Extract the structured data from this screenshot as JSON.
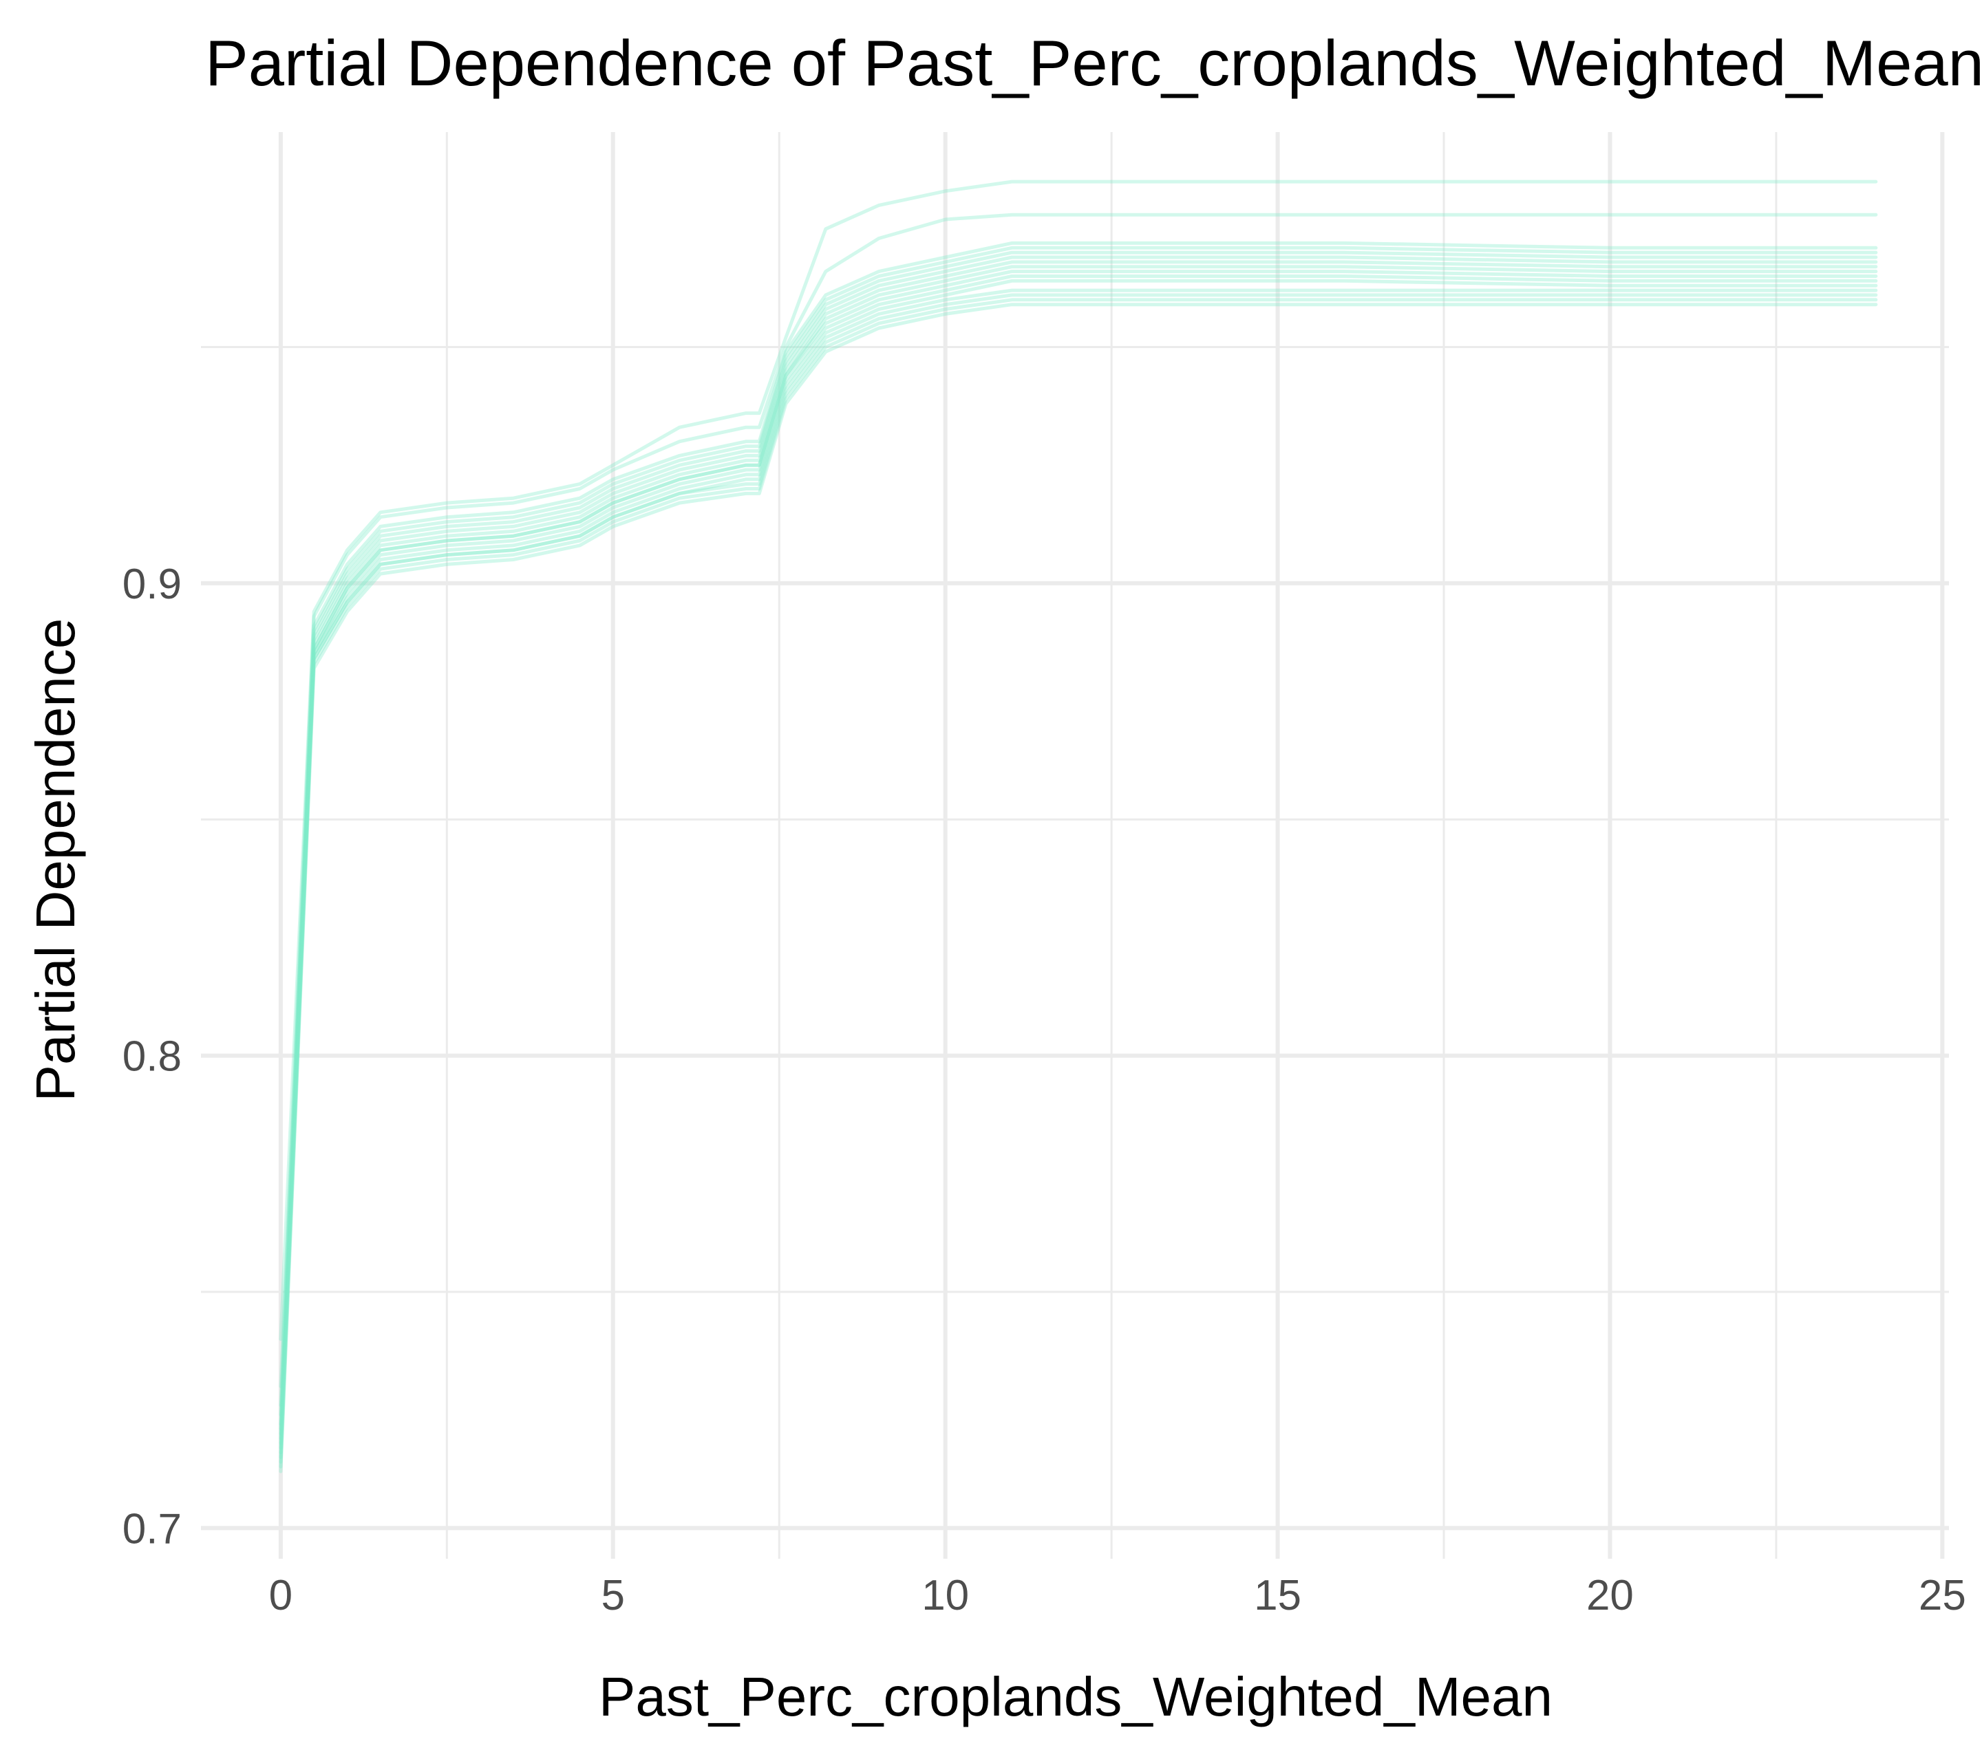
{
  "chart_data": {
    "type": "line",
    "title": "Partial Dependence of Past_Perc_croplands_Weighted_Mean",
    "xlabel": "Past_Perc_croplands_Weighted_Mean",
    "ylabel": "Partial Dependence",
    "xlim": [
      -1.2,
      25.1
    ],
    "ylim": [
      0.6935,
      0.9955
    ],
    "x_ticks": [
      0,
      5,
      10,
      15,
      20,
      25
    ],
    "x_tick_labels": [
      "0",
      "5",
      "10",
      "15",
      "20",
      "25"
    ],
    "y_ticks": [
      0.7,
      0.8,
      0.9
    ],
    "y_tick_labels": [
      "0.7",
      "0.8",
      "0.9"
    ],
    "grid": true,
    "line_color": "#7eecc8",
    "line_opacity": 0.35,
    "x": [
      0,
      0.5,
      1.0,
      1.5,
      2.5,
      3.5,
      4.5,
      5.0,
      6.0,
      7.0,
      7.2,
      7.6,
      8.2,
      9.0,
      10.0,
      11.0,
      13.0,
      16.0,
      20.0,
      24.0
    ],
    "series": [
      {
        "values": [
          0.726,
          0.891,
          0.904,
          0.912,
          0.914,
          0.915,
          0.918,
          0.922,
          0.927,
          0.93,
          0.93,
          0.949,
          0.961,
          0.966,
          0.969,
          0.972,
          0.972,
          0.972,
          0.971,
          0.971
        ]
      },
      {
        "values": [
          0.724,
          0.89,
          0.903,
          0.911,
          0.913,
          0.914,
          0.917,
          0.921,
          0.926,
          0.929,
          0.929,
          0.948,
          0.96,
          0.965,
          0.968,
          0.971,
          0.971,
          0.971,
          0.97,
          0.97
        ]
      },
      {
        "values": [
          0.722,
          0.889,
          0.902,
          0.91,
          0.912,
          0.913,
          0.916,
          0.92,
          0.925,
          0.928,
          0.928,
          0.947,
          0.959,
          0.964,
          0.967,
          0.97,
          0.97,
          0.97,
          0.969,
          0.969
        ]
      },
      {
        "values": [
          0.721,
          0.888,
          0.901,
          0.909,
          0.911,
          0.912,
          0.915,
          0.919,
          0.924,
          0.927,
          0.927,
          0.946,
          0.958,
          0.963,
          0.966,
          0.969,
          0.969,
          0.969,
          0.968,
          0.968
        ]
      },
      {
        "values": [
          0.72,
          0.887,
          0.9,
          0.908,
          0.91,
          0.911,
          0.914,
          0.918,
          0.923,
          0.926,
          0.926,
          0.945,
          0.957,
          0.962,
          0.965,
          0.968,
          0.968,
          0.968,
          0.967,
          0.967
        ]
      },
      {
        "values": [
          0.719,
          0.886,
          0.899,
          0.907,
          0.909,
          0.91,
          0.913,
          0.917,
          0.922,
          0.925,
          0.925,
          0.944,
          0.956,
          0.961,
          0.964,
          0.967,
          0.967,
          0.967,
          0.966,
          0.966
        ]
      },
      {
        "values": [
          0.718,
          0.886,
          0.899,
          0.907,
          0.909,
          0.91,
          0.913,
          0.917,
          0.922,
          0.925,
          0.925,
          0.944,
          0.955,
          0.96,
          0.963,
          0.966,
          0.966,
          0.966,
          0.965,
          0.965
        ]
      },
      {
        "values": [
          0.717,
          0.885,
          0.898,
          0.906,
          0.908,
          0.909,
          0.912,
          0.916,
          0.921,
          0.924,
          0.924,
          0.943,
          0.954,
          0.959,
          0.962,
          0.965,
          0.965,
          0.965,
          0.964,
          0.964
        ]
      },
      {
        "values": [
          0.716,
          0.885,
          0.897,
          0.905,
          0.907,
          0.908,
          0.911,
          0.915,
          0.92,
          0.923,
          0.923,
          0.942,
          0.953,
          0.958,
          0.961,
          0.964,
          0.964,
          0.964,
          0.963,
          0.963
        ]
      },
      {
        "values": [
          0.715,
          0.884,
          0.896,
          0.904,
          0.906,
          0.907,
          0.91,
          0.914,
          0.919,
          0.922,
          0.922,
          0.941,
          0.952,
          0.957,
          0.96,
          0.962,
          0.962,
          0.962,
          0.962,
          0.962
        ]
      },
      {
        "values": [
          0.714,
          0.884,
          0.896,
          0.904,
          0.906,
          0.907,
          0.91,
          0.914,
          0.919,
          0.921,
          0.921,
          0.94,
          0.951,
          0.956,
          0.959,
          0.961,
          0.961,
          0.961,
          0.961,
          0.961
        ]
      },
      {
        "values": [
          0.713,
          0.883,
          0.895,
          0.903,
          0.905,
          0.906,
          0.909,
          0.913,
          0.918,
          0.92,
          0.92,
          0.939,
          0.95,
          0.955,
          0.958,
          0.96,
          0.96,
          0.96,
          0.96,
          0.96
        ]
      },
      {
        "values": [
          0.74,
          0.894,
          0.907,
          0.915,
          0.917,
          0.918,
          0.921,
          0.925,
          0.933,
          0.936,
          0.936,
          0.952,
          0.975,
          0.98,
          0.983,
          0.985,
          0.985,
          0.985,
          0.985,
          0.985
        ]
      },
      {
        "values": [
          0.73,
          0.893,
          0.906,
          0.914,
          0.916,
          0.917,
          0.92,
          0.924,
          0.93,
          0.933,
          0.933,
          0.95,
          0.966,
          0.973,
          0.977,
          0.978,
          0.978,
          0.978,
          0.978,
          0.978
        ]
      },
      {
        "values": [
          0.712,
          0.882,
          0.894,
          0.902,
          0.904,
          0.905,
          0.908,
          0.912,
          0.917,
          0.919,
          0.919,
          0.938,
          0.949,
          0.954,
          0.957,
          0.959,
          0.959,
          0.959,
          0.959,
          0.959
        ]
      }
    ]
  }
}
